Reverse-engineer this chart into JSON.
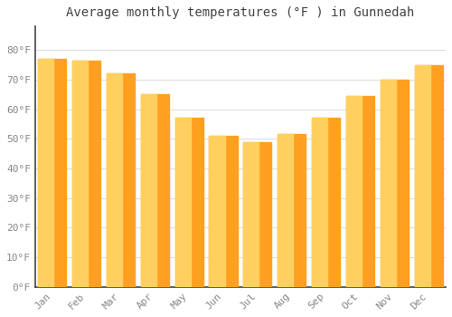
{
  "title": "Average monthly temperatures (°F ) in Gunnedah",
  "months": [
    "Jan",
    "Feb",
    "Mar",
    "Apr",
    "May",
    "Jun",
    "Jul",
    "Aug",
    "Sep",
    "Oct",
    "Nov",
    "Dec"
  ],
  "values": [
    77,
    76.5,
    72,
    65,
    57,
    51,
    49,
    51.5,
    57,
    64.5,
    70,
    75
  ],
  "bar_color_left": "#FFD060",
  "bar_color_right": "#FFA020",
  "background_color": "#FFFFFF",
  "grid_color": "#DDDDDD",
  "ylim": [
    0,
    88
  ],
  "yticks": [
    0,
    10,
    20,
    30,
    40,
    50,
    60,
    70,
    80
  ],
  "ytick_labels": [
    "0°F",
    "10°F",
    "20°F",
    "30°F",
    "40°F",
    "50°F",
    "60°F",
    "70°F",
    "80°F"
  ],
  "title_fontsize": 10,
  "tick_fontsize": 8,
  "title_color": "#444444",
  "tick_color": "#888888"
}
